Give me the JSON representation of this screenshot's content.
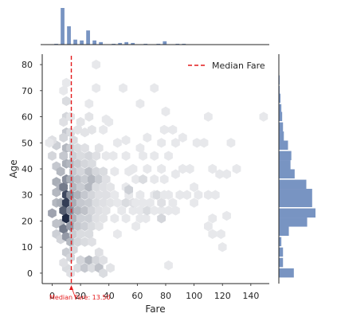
{
  "chart_data": {
    "type": "hexbin-joint",
    "xlabel": "Fare",
    "ylabel": "Age",
    "x_ticks": [
      0,
      20,
      40,
      60,
      80,
      100,
      120,
      140
    ],
    "y_ticks": [
      0,
      10,
      20,
      30,
      40,
      50,
      60,
      70,
      80
    ],
    "xlim": [
      -7,
      153
    ],
    "ylim": [
      -4,
      84
    ],
    "grid": false,
    "legend": {
      "placement": "top-right",
      "entries": [
        "Median Fare"
      ]
    },
    "median_fare": {
      "value": 13.5,
      "label": "Median Fare: 13.50",
      "color": "#e41a1c"
    },
    "hex_color": "#1f2a44",
    "marginal_color": "#7894c2",
    "hexbins": [
      {
        "x": 0,
        "y": 23,
        "d": 0.4
      },
      {
        "x": 3,
        "y": 35,
        "d": 0.35
      },
      {
        "x": 3,
        "y": 27,
        "d": 0.3
      },
      {
        "x": 0,
        "y": 45,
        "d": 0.15
      },
      {
        "x": 3,
        "y": 49,
        "d": 0.18
      },
      {
        "x": 3,
        "y": 41,
        "d": 0.22
      },
      {
        "x": 3,
        "y": 31,
        "d": 0.3
      },
      {
        "x": 6,
        "y": 39,
        "d": 0.3
      },
      {
        "x": 6,
        "y": 33,
        "d": 0.32
      },
      {
        "x": 6,
        "y": 27,
        "d": 0.35
      },
      {
        "x": 6,
        "y": 19,
        "d": 0.3
      },
      {
        "x": 3,
        "y": 19,
        "d": 0.25
      },
      {
        "x": 3,
        "y": 15,
        "d": 0.18
      },
      {
        "x": 6,
        "y": 13,
        "d": 0.15
      },
      {
        "x": 8,
        "y": 33,
        "d": 0.6
      },
      {
        "x": 8,
        "y": 24,
        "d": 0.75
      },
      {
        "x": 8,
        "y": 17,
        "d": 0.6
      },
      {
        "x": 10,
        "y": 30,
        "d": 0.85
      },
      {
        "x": 10,
        "y": 21,
        "d": 1.0
      },
      {
        "x": 10,
        "y": 27,
        "d": 0.9
      },
      {
        "x": 10,
        "y": 36,
        "d": 0.5
      },
      {
        "x": 10,
        "y": 14,
        "d": 0.45
      },
      {
        "x": 10,
        "y": 8,
        "d": 0.2
      },
      {
        "x": 10,
        "y": 42,
        "d": 0.35
      },
      {
        "x": 10,
        "y": 48,
        "d": 0.3
      },
      {
        "x": 10,
        "y": 54,
        "d": 0.22
      },
      {
        "x": 10,
        "y": 60,
        "d": 0.15
      },
      {
        "x": 10,
        "y": 66,
        "d": 0.12
      },
      {
        "x": 10,
        "y": 73,
        "d": 0.06
      },
      {
        "x": 10,
        "y": 2,
        "d": 0.12
      },
      {
        "x": 8,
        "y": 4,
        "d": 0.1
      },
      {
        "x": 8,
        "y": 45,
        "d": 0.22
      },
      {
        "x": 8,
        "y": 52,
        "d": 0.15
      },
      {
        "x": 8,
        "y": 58,
        "d": 0.1
      },
      {
        "x": 8,
        "y": 70,
        "d": 0.06
      },
      {
        "x": 13,
        "y": 24,
        "d": 0.5
      },
      {
        "x": 13,
        "y": 30,
        "d": 0.5
      },
      {
        "x": 13,
        "y": 18,
        "d": 0.45
      },
      {
        "x": 13,
        "y": 36,
        "d": 0.35
      },
      {
        "x": 13,
        "y": 12,
        "d": 0.3
      },
      {
        "x": 13,
        "y": 42,
        "d": 0.3
      },
      {
        "x": 13,
        "y": 48,
        "d": 0.2
      },
      {
        "x": 13,
        "y": 6,
        "d": 0.15
      },
      {
        "x": 13,
        "y": 54,
        "d": 0.12
      },
      {
        "x": 13,
        "y": 60,
        "d": 0.08
      },
      {
        "x": 13,
        "y": 0,
        "d": 0.1
      },
      {
        "x": 15,
        "y": 27,
        "d": 0.35
      },
      {
        "x": 15,
        "y": 33,
        "d": 0.3
      },
      {
        "x": 15,
        "y": 21,
        "d": 0.32
      },
      {
        "x": 15,
        "y": 39,
        "d": 0.22
      },
      {
        "x": 15,
        "y": 15,
        "d": 0.2
      },
      {
        "x": 15,
        "y": 45,
        "d": 0.18
      },
      {
        "x": 15,
        "y": 9,
        "d": 0.14
      },
      {
        "x": 15,
        "y": 51,
        "d": 0.12
      },
      {
        "x": 18,
        "y": 24,
        "d": 0.3
      },
      {
        "x": 18,
        "y": 30,
        "d": 0.32
      },
      {
        "x": 18,
        "y": 36,
        "d": 0.25
      },
      {
        "x": 18,
        "y": 18,
        "d": 0.22
      },
      {
        "x": 18,
        "y": 42,
        "d": 0.2
      },
      {
        "x": 18,
        "y": 12,
        "d": 0.15
      },
      {
        "x": 18,
        "y": 2,
        "d": 0.12
      },
      {
        "x": 18,
        "y": 48,
        "d": 0.12
      },
      {
        "x": 18,
        "y": 55,
        "d": 0.08
      },
      {
        "x": 20,
        "y": 27,
        "d": 0.22
      },
      {
        "x": 20,
        "y": 33,
        "d": 0.2
      },
      {
        "x": 20,
        "y": 21,
        "d": 0.18
      },
      {
        "x": 20,
        "y": 39,
        "d": 0.15
      },
      {
        "x": 20,
        "y": 45,
        "d": 0.12
      },
      {
        "x": 20,
        "y": 15,
        "d": 0.12
      },
      {
        "x": 20,
        "y": 5,
        "d": 0.15
      },
      {
        "x": 20,
        "y": 58,
        "d": 0.08
      },
      {
        "x": 23,
        "y": 24,
        "d": 0.25
      },
      {
        "x": 23,
        "y": 30,
        "d": 0.22
      },
      {
        "x": 23,
        "y": 18,
        "d": 0.18
      },
      {
        "x": 23,
        "y": 36,
        "d": 0.2
      },
      {
        "x": 23,
        "y": 42,
        "d": 0.15
      },
      {
        "x": 23,
        "y": 12,
        "d": 0.12
      },
      {
        "x": 23,
        "y": 2,
        "d": 0.22
      },
      {
        "x": 23,
        "y": 48,
        "d": 0.1
      },
      {
        "x": 23,
        "y": 54,
        "d": 0.08
      },
      {
        "x": 26,
        "y": 27,
        "d": 0.2
      },
      {
        "x": 26,
        "y": 33,
        "d": 0.3
      },
      {
        "x": 26,
        "y": 21,
        "d": 0.18
      },
      {
        "x": 26,
        "y": 39,
        "d": 0.25
      },
      {
        "x": 26,
        "y": 45,
        "d": 0.15
      },
      {
        "x": 26,
        "y": 15,
        "d": 0.12
      },
      {
        "x": 26,
        "y": 5,
        "d": 0.3
      },
      {
        "x": 26,
        "y": 60,
        "d": 0.08
      },
      {
        "x": 26,
        "y": 65,
        "d": 0.06
      },
      {
        "x": 28,
        "y": 24,
        "d": 0.15
      },
      {
        "x": 28,
        "y": 30,
        "d": 0.15
      },
      {
        "x": 28,
        "y": 36,
        "d": 0.3
      },
      {
        "x": 28,
        "y": 18,
        "d": 0.12
      },
      {
        "x": 28,
        "y": 42,
        "d": 0.12
      },
      {
        "x": 28,
        "y": 12,
        "d": 0.1
      },
      {
        "x": 28,
        "y": 2,
        "d": 0.12
      },
      {
        "x": 28,
        "y": 55,
        "d": 0.08
      },
      {
        "x": 31,
        "y": 27,
        "d": 0.12
      },
      {
        "x": 31,
        "y": 33,
        "d": 0.12
      },
      {
        "x": 31,
        "y": 39,
        "d": 0.15
      },
      {
        "x": 31,
        "y": 21,
        "d": 0.1
      },
      {
        "x": 31,
        "y": 45,
        "d": 0.1
      },
      {
        "x": 31,
        "y": 5,
        "d": 0.15
      },
      {
        "x": 31,
        "y": 71,
        "d": 0.06
      },
      {
        "x": 33,
        "y": 24,
        "d": 0.1
      },
      {
        "x": 33,
        "y": 36,
        "d": 0.2
      },
      {
        "x": 33,
        "y": 30,
        "d": 0.1
      },
      {
        "x": 33,
        "y": 18,
        "d": 0.08
      },
      {
        "x": 33,
        "y": 2,
        "d": 0.25
      },
      {
        "x": 33,
        "y": 8,
        "d": 0.1
      },
      {
        "x": 33,
        "y": 48,
        "d": 0.08
      },
      {
        "x": 36,
        "y": 27,
        "d": 0.1
      },
      {
        "x": 36,
        "y": 33,
        "d": 0.1
      },
      {
        "x": 36,
        "y": 39,
        "d": 0.12
      },
      {
        "x": 36,
        "y": 21,
        "d": 0.08
      },
      {
        "x": 36,
        "y": 5,
        "d": 0.1
      },
      {
        "x": 36,
        "y": 0,
        "d": 0.12
      },
      {
        "x": 38,
        "y": 36,
        "d": 0.1
      },
      {
        "x": 38,
        "y": 30,
        "d": 0.1
      },
      {
        "x": 38,
        "y": 24,
        "d": 0.08
      },
      {
        "x": 38,
        "y": 45,
        "d": 0.06
      },
      {
        "x": 38,
        "y": 59,
        "d": 0.06
      },
      {
        "x": 31,
        "y": 80,
        "d": 0.06
      },
      {
        "x": 0,
        "y": 51,
        "d": 0.1
      },
      {
        "x": -2,
        "y": 50,
        "d": 0.06
      },
      {
        "x": 41,
        "y": 27,
        "d": 0.08
      },
      {
        "x": 41,
        "y": 33,
        "d": 0.08
      },
      {
        "x": 41,
        "y": 2,
        "d": 0.08
      },
      {
        "x": 44,
        "y": 30,
        "d": 0.06
      },
      {
        "x": 44,
        "y": 21,
        "d": 0.06
      },
      {
        "x": 46,
        "y": 15,
        "d": 0.06
      },
      {
        "x": 46,
        "y": 27,
        "d": 0.06
      },
      {
        "x": 49,
        "y": 24,
        "d": 0.06
      },
      {
        "x": 52,
        "y": 33,
        "d": 0.06
      },
      {
        "x": 52,
        "y": 27,
        "d": 0.12
      },
      {
        "x": 52,
        "y": 21,
        "d": 0.06
      },
      {
        "x": 54,
        "y": 30,
        "d": 0.06
      },
      {
        "x": 54,
        "y": 39,
        "d": 0.06
      },
      {
        "x": 52,
        "y": 45,
        "d": 0.06
      },
      {
        "x": 52,
        "y": 51,
        "d": 0.06
      },
      {
        "x": 54,
        "y": 32,
        "d": 0.18
      },
      {
        "x": 57,
        "y": 24,
        "d": 0.06
      },
      {
        "x": 57,
        "y": 27,
        "d": 0.1
      },
      {
        "x": 59,
        "y": 36,
        "d": 0.06
      },
      {
        "x": 59,
        "y": 18,
        "d": 0.06
      },
      {
        "x": 59,
        "y": 27,
        "d": 0.06
      },
      {
        "x": 62,
        "y": 21,
        "d": 0.06
      },
      {
        "x": 62,
        "y": 30,
        "d": 0.06
      },
      {
        "x": 62,
        "y": 24,
        "d": 0.06
      },
      {
        "x": 64,
        "y": 27,
        "d": 0.06
      },
      {
        "x": 64,
        "y": 36,
        "d": 0.12
      },
      {
        "x": 64,
        "y": 45,
        "d": 0.06
      },
      {
        "x": 66,
        "y": 21,
        "d": 0.06
      },
      {
        "x": 67,
        "y": 24,
        "d": 0.12
      },
      {
        "x": 69,
        "y": 27,
        "d": 0.06
      },
      {
        "x": 72,
        "y": 30,
        "d": 0.06
      },
      {
        "x": 72,
        "y": 24,
        "d": 0.06
      },
      {
        "x": 72,
        "y": 36,
        "d": 0.06
      },
      {
        "x": 74,
        "y": 30,
        "d": 0.12
      },
      {
        "x": 77,
        "y": 24,
        "d": 0.06
      },
      {
        "x": 77,
        "y": 21,
        "d": 0.15
      },
      {
        "x": 77,
        "y": 27,
        "d": 0.1
      },
      {
        "x": 79,
        "y": 30,
        "d": 0.06
      },
      {
        "x": 79,
        "y": 36,
        "d": 0.06
      },
      {
        "x": 82,
        "y": 24,
        "d": 0.06
      },
      {
        "x": 82,
        "y": 30,
        "d": 0.06
      },
      {
        "x": 85,
        "y": 27,
        "d": 0.06
      },
      {
        "x": 87,
        "y": 24,
        "d": 0.06
      },
      {
        "x": 90,
        "y": 30,
        "d": 0.06
      },
      {
        "x": 95,
        "y": 30,
        "d": 0.06
      },
      {
        "x": 100,
        "y": 27,
        "d": 0.06
      },
      {
        "x": 100,
        "y": 33,
        "d": 0.06
      },
      {
        "x": 103,
        "y": 30,
        "d": 0.06
      },
      {
        "x": 110,
        "y": 30,
        "d": 0.06
      },
      {
        "x": 113,
        "y": 21,
        "d": 0.06
      },
      {
        "x": 115,
        "y": 30,
        "d": 0.06
      },
      {
        "x": 110,
        "y": 18,
        "d": 0.06
      },
      {
        "x": 113,
        "y": 15,
        "d": 0.06
      },
      {
        "x": 119,
        "y": 15,
        "d": 0.06
      },
      {
        "x": 123,
        "y": 22,
        "d": 0.06
      },
      {
        "x": 113,
        "y": 40,
        "d": 0.06
      },
      {
        "x": 118,
        "y": 38,
        "d": 0.06
      },
      {
        "x": 123,
        "y": 38,
        "d": 0.06
      },
      {
        "x": 130,
        "y": 40,
        "d": 0.06
      },
      {
        "x": 126,
        "y": 50,
        "d": 0.06
      },
      {
        "x": 110,
        "y": 60,
        "d": 0.06
      },
      {
        "x": 149,
        "y": 60,
        "d": 0.06
      },
      {
        "x": 80,
        "y": 62,
        "d": 0.06
      },
      {
        "x": 72,
        "y": 71,
        "d": 0.06
      },
      {
        "x": 62,
        "y": 65,
        "d": 0.06
      },
      {
        "x": 50,
        "y": 71,
        "d": 0.06
      },
      {
        "x": 82,
        "y": 3,
        "d": 0.06
      },
      {
        "x": 79,
        "y": 55,
        "d": 0.06
      },
      {
        "x": 82,
        "y": 45,
        "d": 0.06
      },
      {
        "x": 87,
        "y": 50,
        "d": 0.06
      },
      {
        "x": 92,
        "y": 52,
        "d": 0.06
      },
      {
        "x": 102,
        "y": 50,
        "d": 0.06
      },
      {
        "x": 107,
        "y": 50,
        "d": 0.06
      },
      {
        "x": 120,
        "y": 10,
        "d": 0.06
      },
      {
        "x": 62,
        "y": 48,
        "d": 0.06
      },
      {
        "x": 67,
        "y": 52,
        "d": 0.06
      },
      {
        "x": 72,
        "y": 45,
        "d": 0.06
      },
      {
        "x": 77,
        "y": 50,
        "d": 0.06
      },
      {
        "x": 85,
        "y": 55,
        "d": 0.06
      },
      {
        "x": 57,
        "y": 40,
        "d": 0.06
      },
      {
        "x": 67,
        "y": 40,
        "d": 0.06
      },
      {
        "x": 77,
        "y": 40,
        "d": 0.06
      },
      {
        "x": 87,
        "y": 38,
        "d": 0.06
      },
      {
        "x": 92,
        "y": 40,
        "d": 0.06
      },
      {
        "x": 97,
        "y": 40,
        "d": 0.06
      },
      {
        "x": 43,
        "y": 45,
        "d": 0.06
      },
      {
        "x": 46,
        "y": 50,
        "d": 0.06
      },
      {
        "x": 40,
        "y": 58,
        "d": 0.06
      },
      {
        "x": 36,
        "y": 55,
        "d": 0.06
      },
      {
        "x": 44,
        "y": 39,
        "d": 0.06
      }
    ],
    "x_marginal": {
      "bin_starts": [
        -6,
        0,
        6,
        12,
        18,
        24,
        30,
        36,
        42,
        48,
        54,
        60,
        66,
        72,
        78,
        84,
        90,
        96
      ],
      "bin_width": 3,
      "counts": [
        0.5,
        1,
        44,
        22,
        6,
        5,
        17,
        5,
        3,
        1,
        2,
        3,
        2,
        1,
        1,
        4,
        1,
        1
      ],
      "bin_x": [
        -3,
        3,
        7.5,
        12,
        16.5,
        21,
        25.5,
        30,
        34.5,
        43.5,
        48,
        52.5,
        57,
        66,
        75,
        79.5,
        88.5,
        93
      ]
    },
    "y_marginal": {
      "bin_width": 3.7,
      "bins": [
        {
          "y": 0,
          "c": 18
        },
        {
          "y": 4,
          "c": 5
        },
        {
          "y": 8,
          "c": 5
        },
        {
          "y": 12,
          "c": 3
        },
        {
          "y": 16,
          "c": 12
        },
        {
          "y": 19.5,
          "c": 34
        },
        {
          "y": 23,
          "c": 44
        },
        {
          "y": 27,
          "c": 40
        },
        {
          "y": 30.5,
          "c": 40
        },
        {
          "y": 34,
          "c": 33
        },
        {
          "y": 38,
          "c": 19
        },
        {
          "y": 41.5,
          "c": 14
        },
        {
          "y": 45,
          "c": 15
        },
        {
          "y": 49,
          "c": 11
        },
        {
          "y": 52.5,
          "c": 6
        },
        {
          "y": 56,
          "c": 5
        },
        {
          "y": 60,
          "c": 4
        },
        {
          "y": 63,
          "c": 3
        },
        {
          "y": 67,
          "c": 2
        },
        {
          "y": 70,
          "c": 1
        },
        {
          "y": 74,
          "c": 1
        }
      ]
    }
  }
}
